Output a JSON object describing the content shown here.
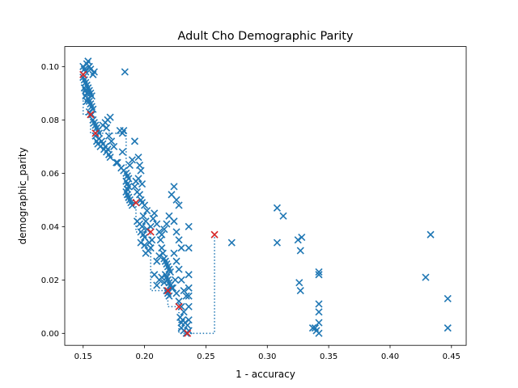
{
  "chart_data": {
    "type": "scatter",
    "title": "Adult Cho Demographic Parity",
    "xlabel": "1 - accuracy",
    "ylabel": "demographic_parity",
    "xlim": [
      0.135,
      0.462
    ],
    "ylim": [
      -0.0045,
      0.1075
    ],
    "x_ticks": [
      0.15,
      0.2,
      0.25,
      0.3,
      0.35,
      0.4,
      0.45
    ],
    "x_tick_labels": [
      "0.15",
      "0.20",
      "0.25",
      "0.30",
      "0.35",
      "0.40",
      "0.45"
    ],
    "y_ticks": [
      0.0,
      0.02,
      0.04,
      0.06,
      0.08,
      0.1
    ],
    "y_tick_labels": [
      "0.00",
      "0.02",
      "0.04",
      "0.06",
      "0.08",
      "0.10"
    ],
    "grid": false,
    "legend": "none",
    "colors": {
      "points": "#1f77b4",
      "pareto_points": "#d62728",
      "frontier": "#1f77b4"
    },
    "series": [
      {
        "values": [
          [
            0.15,
            0.1
          ],
          [
            0.151,
            0.099
          ],
          [
            0.152,
            0.098
          ],
          [
            0.153,
            0.101
          ],
          [
            0.154,
            0.102
          ],
          [
            0.155,
            0.1
          ],
          [
            0.156,
            0.099
          ],
          [
            0.158,
            0.097
          ],
          [
            0.159,
            0.098
          ],
          [
            0.15,
            0.096
          ],
          [
            0.151,
            0.095
          ],
          [
            0.152,
            0.094
          ],
          [
            0.153,
            0.093
          ],
          [
            0.154,
            0.092
          ],
          [
            0.155,
            0.091
          ],
          [
            0.156,
            0.09
          ],
          [
            0.157,
            0.089
          ],
          [
            0.151,
            0.092
          ],
          [
            0.152,
            0.091
          ],
          [
            0.153,
            0.09
          ],
          [
            0.154,
            0.088
          ],
          [
            0.155,
            0.087
          ],
          [
            0.156,
            0.086
          ],
          [
            0.157,
            0.085
          ],
          [
            0.158,
            0.084
          ],
          [
            0.152,
            0.089
          ],
          [
            0.153,
            0.087
          ],
          [
            0.155,
            0.083
          ],
          [
            0.157,
            0.082
          ],
          [
            0.158,
            0.08
          ],
          [
            0.159,
            0.079
          ],
          [
            0.16,
            0.078
          ],
          [
            0.161,
            0.077
          ],
          [
            0.162,
            0.076
          ],
          [
            0.163,
            0.075
          ],
          [
            0.16,
            0.074
          ],
          [
            0.161,
            0.072
          ],
          [
            0.162,
            0.071
          ],
          [
            0.163,
            0.073
          ],
          [
            0.164,
            0.07
          ],
          [
            0.165,
            0.072
          ],
          [
            0.166,
            0.071
          ],
          [
            0.167,
            0.069
          ],
          [
            0.168,
            0.07
          ],
          [
            0.169,
            0.068
          ],
          [
            0.17,
            0.069
          ],
          [
            0.171,
            0.067
          ],
          [
            0.172,
            0.066
          ],
          [
            0.166,
            0.078
          ],
          [
            0.168,
            0.079
          ],
          [
            0.17,
            0.08
          ],
          [
            0.172,
            0.081
          ],
          [
            0.169,
            0.077
          ],
          [
            0.171,
            0.074
          ],
          [
            0.173,
            0.072
          ],
          [
            0.175,
            0.07
          ],
          [
            0.177,
            0.064
          ],
          [
            0.178,
            0.064
          ],
          [
            0.18,
            0.076
          ],
          [
            0.182,
            0.075
          ],
          [
            0.183,
            0.076
          ],
          [
            0.184,
            0.098
          ],
          [
            0.182,
            0.068
          ],
          [
            0.181,
            0.062
          ],
          [
            0.183,
            0.061
          ],
          [
            0.185,
            0.06
          ],
          [
            0.186,
            0.059
          ],
          [
            0.187,
            0.058
          ],
          [
            0.185,
            0.057
          ],
          [
            0.186,
            0.056
          ],
          [
            0.187,
            0.055
          ],
          [
            0.186,
            0.054
          ],
          [
            0.185,
            0.053
          ],
          [
            0.186,
            0.052
          ],
          [
            0.187,
            0.051
          ],
          [
            0.188,
            0.05
          ],
          [
            0.189,
            0.049
          ],
          [
            0.19,
            0.048
          ],
          [
            0.188,
            0.063
          ],
          [
            0.19,
            0.065
          ],
          [
            0.192,
            0.072
          ],
          [
            0.195,
            0.066
          ],
          [
            0.196,
            0.063
          ],
          [
            0.197,
            0.061
          ],
          [
            0.195,
            0.058
          ],
          [
            0.198,
            0.056
          ],
          [
            0.193,
            0.057
          ],
          [
            0.192,
            0.055
          ],
          [
            0.194,
            0.053
          ],
          [
            0.196,
            0.052
          ],
          [
            0.197,
            0.05
          ],
          [
            0.198,
            0.049
          ],
          [
            0.2,
            0.048
          ],
          [
            0.202,
            0.046
          ],
          [
            0.199,
            0.044
          ],
          [
            0.201,
            0.042
          ],
          [
            0.194,
            0.042
          ],
          [
            0.196,
            0.041
          ],
          [
            0.198,
            0.04
          ],
          [
            0.197,
            0.038
          ],
          [
            0.199,
            0.037
          ],
          [
            0.2,
            0.036
          ],
          [
            0.202,
            0.039
          ],
          [
            0.204,
            0.034
          ],
          [
            0.206,
            0.035
          ],
          [
            0.205,
            0.032
          ],
          [
            0.203,
            0.031
          ],
          [
            0.201,
            0.03
          ],
          [
            0.2,
            0.033
          ],
          [
            0.197,
            0.034
          ],
          [
            0.205,
            0.04
          ],
          [
            0.207,
            0.043
          ],
          [
            0.208,
            0.045
          ],
          [
            0.21,
            0.041
          ],
          [
            0.212,
            0.038
          ],
          [
            0.213,
            0.035
          ],
          [
            0.214,
            0.032
          ],
          [
            0.215,
            0.03
          ],
          [
            0.216,
            0.028
          ],
          [
            0.217,
            0.027
          ],
          [
            0.218,
            0.026
          ],
          [
            0.219,
            0.025
          ],
          [
            0.22,
            0.024
          ],
          [
            0.221,
            0.023
          ],
          [
            0.217,
            0.022
          ],
          [
            0.218,
            0.021
          ],
          [
            0.219,
            0.02
          ],
          [
            0.22,
            0.019
          ],
          [
            0.221,
            0.018
          ],
          [
            0.222,
            0.017
          ],
          [
            0.218,
            0.016
          ],
          [
            0.219,
            0.015
          ],
          [
            0.22,
            0.014
          ],
          [
            0.21,
            0.018
          ],
          [
            0.212,
            0.02
          ],
          [
            0.214,
            0.021
          ],
          [
            0.216,
            0.019
          ],
          [
            0.208,
            0.022
          ],
          [
            0.21,
            0.027
          ],
          [
            0.212,
            0.029
          ],
          [
            0.214,
            0.037
          ],
          [
            0.216,
            0.039
          ],
          [
            0.218,
            0.041
          ],
          [
            0.22,
            0.044
          ],
          [
            0.222,
            0.052
          ],
          [
            0.224,
            0.055
          ],
          [
            0.226,
            0.05
          ],
          [
            0.228,
            0.048
          ],
          [
            0.224,
            0.042
          ],
          [
            0.226,
            0.038
          ],
          [
            0.228,
            0.035
          ],
          [
            0.23,
            0.032
          ],
          [
            0.224,
            0.03
          ],
          [
            0.226,
            0.027
          ],
          [
            0.228,
            0.024
          ],
          [
            0.23,
            0.02
          ],
          [
            0.232,
            0.016
          ],
          [
            0.234,
            0.014
          ],
          [
            0.228,
            0.012
          ],
          [
            0.23,
            0.01
          ],
          [
            0.232,
            0.008
          ],
          [
            0.229,
            0.006
          ],
          [
            0.231,
            0.005
          ],
          [
            0.233,
            0.004
          ],
          [
            0.235,
            0.003
          ],
          [
            0.236,
            0.005
          ],
          [
            0.23,
            0.002
          ],
          [
            0.232,
            0.001
          ],
          [
            0.234,
            0.0
          ],
          [
            0.236,
            0.001
          ],
          [
            0.23,
            0.004
          ],
          [
            0.236,
            0.04
          ],
          [
            0.236,
            0.032
          ],
          [
            0.236,
            0.022
          ],
          [
            0.236,
            0.017
          ],
          [
            0.236,
            0.014
          ],
          [
            0.236,
            0.01
          ],
          [
            0.225,
            0.02
          ],
          [
            0.223,
            0.017
          ],
          [
            0.226,
            0.015
          ],
          [
            0.271,
            0.034
          ],
          [
            0.308,
            0.047
          ],
          [
            0.313,
            0.044
          ],
          [
            0.308,
            0.034
          ],
          [
            0.325,
            0.035
          ],
          [
            0.328,
            0.036
          ],
          [
            0.327,
            0.031
          ],
          [
            0.326,
            0.019
          ],
          [
            0.327,
            0.016
          ],
          [
            0.337,
            0.002
          ],
          [
            0.339,
            0.002
          ],
          [
            0.34,
            0.001
          ],
          [
            0.342,
            0.0
          ],
          [
            0.342,
            0.023
          ],
          [
            0.342,
            0.022
          ],
          [
            0.342,
            0.011
          ],
          [
            0.342,
            0.008
          ],
          [
            0.342,
            0.004
          ],
          [
            0.429,
            0.021
          ],
          [
            0.433,
            0.037
          ],
          [
            0.447,
            0.013
          ],
          [
            0.447,
            0.002
          ]
        ]
      },
      {
        "values": [
          [
            0.15,
            0.097
          ],
          [
            0.156,
            0.082
          ],
          [
            0.16,
            0.075
          ],
          [
            0.193,
            0.049
          ],
          [
            0.205,
            0.038
          ],
          [
            0.219,
            0.016
          ],
          [
            0.228,
            0.01
          ],
          [
            0.235,
            0.0
          ],
          [
            0.257,
            0.037
          ]
        ]
      }
    ],
    "frontier": [
      [
        0.15,
        0.097
      ],
      [
        0.15,
        0.082
      ],
      [
        0.156,
        0.082
      ],
      [
        0.156,
        0.075
      ],
      [
        0.16,
        0.075
      ],
      [
        0.185,
        0.075
      ],
      [
        0.185,
        0.049
      ],
      [
        0.193,
        0.049
      ],
      [
        0.193,
        0.038
      ],
      [
        0.205,
        0.038
      ],
      [
        0.205,
        0.016
      ],
      [
        0.219,
        0.016
      ],
      [
        0.219,
        0.01
      ],
      [
        0.228,
        0.01
      ],
      [
        0.228,
        0.0
      ],
      [
        0.257,
        0.0
      ],
      [
        0.257,
        0.037
      ]
    ]
  }
}
